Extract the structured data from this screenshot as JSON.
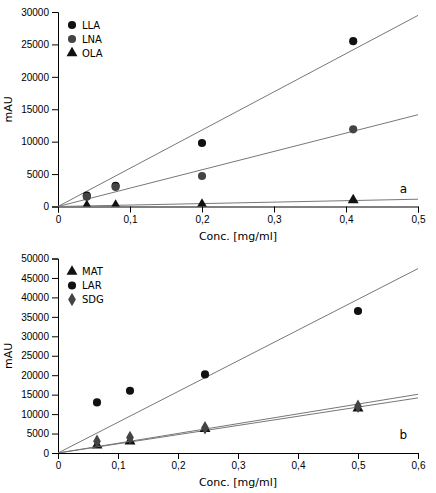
{
  "chart_data": [
    {
      "type": "scatter",
      "annotations": [
        {
          "text": "a"
        }
      ],
      "xlabel": "Conc. [mg/ml]",
      "ylabel": "mAU",
      "xlim": [
        0,
        0.5
      ],
      "ylim": [
        0,
        30000
      ],
      "xticks": [
        0,
        {
          "value": 0.1,
          "label": "0,1"
        },
        {
          "value": 0.2,
          "label": "0,2"
        },
        {
          "value": 0.3,
          "label": "0,3"
        },
        {
          "value": 0.4,
          "label": "0,4"
        },
        {
          "value": 0.5,
          "label": "0,5"
        }
      ],
      "yticks": [
        0,
        5000,
        10000,
        15000,
        20000,
        25000,
        30000
      ],
      "grid": false,
      "legend": "upper left",
      "series": [
        {
          "type": "line",
          "color": "#777777",
          "x": [
            0,
            0.5
          ],
          "values": [
            0,
            29474.7802
          ]
        },
        {
          "name": "LLA",
          "marker": "circle",
          "color": "#111111",
          "x": [
            0.04,
            0.08,
            0.2,
            0.41
          ],
          "values": [
            1700,
            3200,
            9800,
            25500
          ]
        },
        {
          "type": "line",
          "color": "#777777",
          "x": [
            0,
            0.5
          ],
          "values": [
            0,
            14157.7973
          ]
        },
        {
          "name": "LNA",
          "marker": "circle",
          "color": "#444444",
          "x": [
            0.04,
            0.08,
            0.2,
            0.41
          ],
          "values": [
            1500,
            3000,
            4700,
            11900
          ]
        },
        {
          "type": "line",
          "color": "#777777",
          "x": [
            0,
            0.5
          ],
          "values": [
            0,
            1124.4794
          ]
        },
        {
          "name": "OLA",
          "marker": "triangle",
          "color": "#111111",
          "x": [
            0.04,
            0.08,
            0.2,
            0.41
          ],
          "values": [
            100,
            150,
            300,
            1000
          ]
        }
      ]
    },
    {
      "type": "scatter",
      "annotations": [
        {
          "text": "b"
        }
      ],
      "xlabel": "Conc. [mg/ml]",
      "ylabel": "mAU",
      "xlim": [
        0,
        0.6
      ],
      "ylim": [
        0,
        50000
      ],
      "xticks": [
        0,
        {
          "value": 0.1,
          "label": "0,1"
        },
        {
          "value": 0.2,
          "label": "0,2"
        },
        {
          "value": 0.3,
          "label": "0,3"
        },
        {
          "value": 0.4,
          "label": "0,4"
        },
        {
          "value": 0.5,
          "label": "0,5"
        },
        {
          "value": 0.6,
          "label": "0,6"
        }
      ],
      "yticks": [
        0,
        5000,
        10000,
        15000,
        20000,
        25000,
        30000,
        35000,
        40000,
        45000,
        50000
      ],
      "grid": false,
      "legend": "upper left",
      "series": [
        {
          "type": "line",
          "color": "#777777",
          "x": [
            0,
            0.6
          ],
          "values": [
            0,
            14165.2214
          ]
        },
        {
          "name": "MAT",
          "marker": "triangle",
          "color": "#111111",
          "x": [
            0.065,
            0.12,
            0.245,
            0.5
          ],
          "values": [
            2000,
            3000,
            6200,
            11500
          ]
        },
        {
          "type": "line",
          "color": "#777777",
          "x": [
            0,
            0.6
          ],
          "values": [
            0,
            47401.1867
          ]
        },
        {
          "name": "LAR",
          "marker": "circle",
          "color": "#111111",
          "x": [
            0.065,
            0.12,
            0.245,
            0.5
          ],
          "values": [
            13000,
            16000,
            20200,
            36500
          ]
        },
        {
          "type": "line",
          "color": "#777777",
          "x": [
            0,
            0.6
          ],
          "values": [
            0,
            15093.5646
          ]
        },
        {
          "name": "SDG",
          "marker": "diamond",
          "color": "#444444",
          "x": [
            0.065,
            0.12,
            0.245,
            0.5
          ],
          "values": [
            3000,
            4000,
            6500,
            12000
          ]
        }
      ]
    }
  ]
}
